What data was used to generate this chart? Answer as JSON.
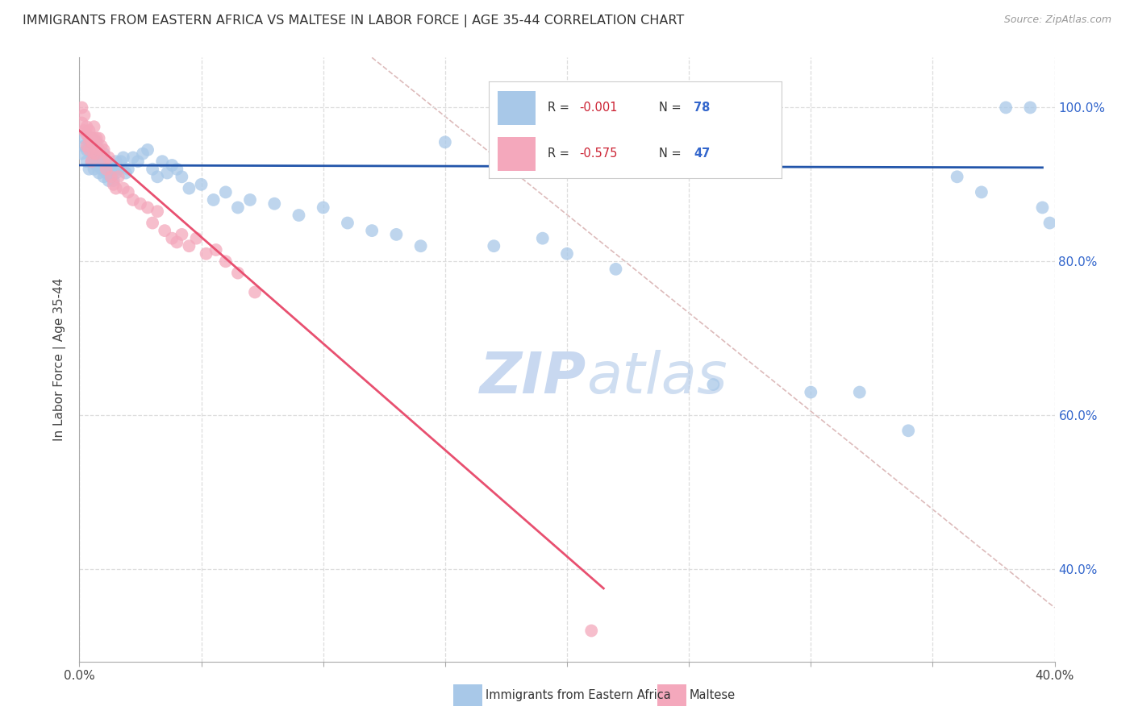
{
  "title": "IMMIGRANTS FROM EASTERN AFRICA VS MALTESE IN LABOR FORCE | AGE 35-44 CORRELATION CHART",
  "source": "Source: ZipAtlas.com",
  "ylabel_left": "In Labor Force | Age 35-44",
  "legend_blue_label": "Immigrants from Eastern Africa",
  "legend_pink_label": "Maltese",
  "legend_blue_R": "R = -0.001",
  "legend_blue_N": "N = 78",
  "legend_pink_R": "R = -0.575",
  "legend_pink_N": "N = 47",
  "xmin": 0.0,
  "xmax": 0.4,
  "ymin": 0.28,
  "ymax": 1.065,
  "xticks": [
    0.0,
    0.05,
    0.1,
    0.15,
    0.2,
    0.25,
    0.3,
    0.35,
    0.4
  ],
  "yticks_grid": [
    0.4,
    0.6,
    0.8,
    1.0
  ],
  "ytick_right_labels": [
    "40.0%",
    "60.0%",
    "80.0%",
    "100.0%"
  ],
  "blue_color": "#A8C8E8",
  "pink_color": "#F4A8BC",
  "blue_line_color": "#2255AA",
  "pink_line_color": "#E85070",
  "diag_line_color": "#DDBBBB",
  "watermark_color": "#C8D8F0",
  "blue_dots_x": [
    0.001,
    0.002,
    0.002,
    0.003,
    0.003,
    0.004,
    0.004,
    0.005,
    0.005,
    0.005,
    0.006,
    0.006,
    0.006,
    0.007,
    0.007,
    0.007,
    0.008,
    0.008,
    0.008,
    0.009,
    0.009,
    0.01,
    0.01,
    0.01,
    0.011,
    0.011,
    0.012,
    0.012,
    0.013,
    0.013,
    0.014,
    0.014,
    0.015,
    0.015,
    0.016,
    0.017,
    0.018,
    0.019,
    0.02,
    0.022,
    0.024,
    0.026,
    0.028,
    0.03,
    0.032,
    0.034,
    0.036,
    0.038,
    0.04,
    0.042,
    0.045,
    0.05,
    0.055,
    0.06,
    0.065,
    0.07,
    0.08,
    0.09,
    0.1,
    0.11,
    0.12,
    0.13,
    0.14,
    0.15,
    0.17,
    0.19,
    0.2,
    0.22,
    0.26,
    0.3,
    0.32,
    0.34,
    0.36,
    0.37,
    0.38,
    0.39,
    0.395,
    0.398
  ],
  "blue_dots_y": [
    0.94,
    0.95,
    0.96,
    0.93,
    0.945,
    0.92,
    0.955,
    0.93,
    0.945,
    0.96,
    0.92,
    0.935,
    0.95,
    0.925,
    0.94,
    0.955,
    0.915,
    0.93,
    0.945,
    0.92,
    0.935,
    0.91,
    0.925,
    0.94,
    0.915,
    0.93,
    0.905,
    0.92,
    0.91,
    0.925,
    0.905,
    0.92,
    0.915,
    0.93,
    0.92,
    0.93,
    0.935,
    0.915,
    0.92,
    0.935,
    0.93,
    0.94,
    0.945,
    0.92,
    0.91,
    0.93,
    0.915,
    0.925,
    0.92,
    0.91,
    0.895,
    0.9,
    0.88,
    0.89,
    0.87,
    0.88,
    0.875,
    0.86,
    0.87,
    0.85,
    0.84,
    0.835,
    0.82,
    0.955,
    0.82,
    0.83,
    0.81,
    0.79,
    0.64,
    0.63,
    0.63,
    0.58,
    0.91,
    0.89,
    1.0,
    1.0,
    0.87,
    0.85
  ],
  "pink_dots_x": [
    0.001,
    0.001,
    0.002,
    0.002,
    0.003,
    0.003,
    0.003,
    0.004,
    0.004,
    0.004,
    0.005,
    0.005,
    0.006,
    0.006,
    0.006,
    0.007,
    0.007,
    0.008,
    0.008,
    0.009,
    0.01,
    0.01,
    0.011,
    0.012,
    0.013,
    0.014,
    0.015,
    0.016,
    0.018,
    0.02,
    0.022,
    0.025,
    0.028,
    0.03,
    0.032,
    0.035,
    0.038,
    0.04,
    0.042,
    0.045,
    0.048,
    0.052,
    0.056,
    0.06,
    0.065,
    0.072,
    0.21
  ],
  "pink_dots_y": [
    0.98,
    1.0,
    0.97,
    0.99,
    0.95,
    0.965,
    0.975,
    0.945,
    0.96,
    0.97,
    0.93,
    0.955,
    0.94,
    0.96,
    0.975,
    0.94,
    0.96,
    0.945,
    0.96,
    0.95,
    0.93,
    0.945,
    0.92,
    0.935,
    0.91,
    0.9,
    0.895,
    0.91,
    0.895,
    0.89,
    0.88,
    0.875,
    0.87,
    0.85,
    0.865,
    0.84,
    0.83,
    0.825,
    0.835,
    0.82,
    0.83,
    0.81,
    0.815,
    0.8,
    0.785,
    0.76,
    0.32
  ],
  "blue_trend_x": [
    0.0,
    0.395
  ],
  "blue_trend_y": [
    0.925,
    0.922
  ],
  "pink_trend_x": [
    0.0,
    0.215
  ],
  "pink_trend_y": [
    0.97,
    0.375
  ],
  "diag_line_x": [
    0.12,
    0.4
  ],
  "diag_line_y": [
    1.065,
    0.35
  ]
}
